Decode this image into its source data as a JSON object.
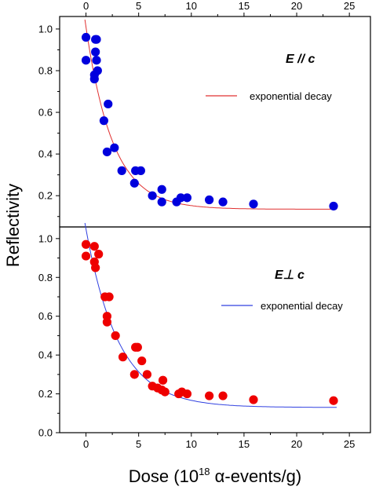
{
  "figure": {
    "ylabel": "Reflectivity",
    "xlabel_prefix": "Dose (10",
    "xlabel_exponent": "18",
    "xlabel_suffix": " α-events/g)"
  },
  "chart_data": [
    {
      "type": "scatter",
      "panel": "top",
      "label": "E // c",
      "xlim": [
        -2.5,
        27
      ],
      "ylim": [
        0.05,
        1.06
      ],
      "xticks": [
        0,
        5,
        10,
        15,
        20,
        25
      ],
      "xtick_labels": [
        "0",
        "5",
        "10",
        "15",
        "20",
        "25"
      ],
      "yticks": [
        0.2,
        0.4,
        0.6,
        0.8,
        1.0
      ],
      "ytick_labels": [
        "0.2",
        "0.4",
        "0.6",
        "0.8",
        "1.0"
      ],
      "x_axis_position": "top",
      "series": [
        {
          "kind": "points",
          "color": "#0000dd",
          "points": [
            {
              "x": 0.0,
              "y": 0.96
            },
            {
              "x": 0.0,
              "y": 0.85
            },
            {
              "x": 0.9,
              "y": 0.95
            },
            {
              "x": 1.0,
              "y": 0.95
            },
            {
              "x": 0.9,
              "y": 0.89
            },
            {
              "x": 1.0,
              "y": 0.85
            },
            {
              "x": 0.8,
              "y": 0.78
            },
            {
              "x": 0.8,
              "y": 0.76
            },
            {
              "x": 1.1,
              "y": 0.8
            },
            {
              "x": 1.7,
              "y": 0.56
            },
            {
              "x": 2.1,
              "y": 0.64
            },
            {
              "x": 2.0,
              "y": 0.41
            },
            {
              "x": 2.7,
              "y": 0.43
            },
            {
              "x": 3.4,
              "y": 0.32
            },
            {
              "x": 4.6,
              "y": 0.26
            },
            {
              "x": 4.7,
              "y": 0.32
            },
            {
              "x": 5.2,
              "y": 0.32
            },
            {
              "x": 6.3,
              "y": 0.2
            },
            {
              "x": 7.2,
              "y": 0.23
            },
            {
              "x": 7.2,
              "y": 0.17
            },
            {
              "x": 8.6,
              "y": 0.17
            },
            {
              "x": 9.0,
              "y": 0.19
            },
            {
              "x": 9.6,
              "y": 0.19
            },
            {
              "x": 11.7,
              "y": 0.18
            },
            {
              "x": 13.0,
              "y": 0.17
            },
            {
              "x": 15.9,
              "y": 0.16
            },
            {
              "x": 23.5,
              "y": 0.15
            }
          ]
        },
        {
          "kind": "line",
          "name": "exponential decay",
          "color": "#e03030",
          "model": {
            "y0": 0.135,
            "A": 0.875,
            "t": 2.55
          },
          "x_from": -0.1,
          "x_to": 23.8
        }
      ],
      "legend": {
        "text": "exponential decay",
        "position": "upper-right"
      }
    },
    {
      "type": "scatter",
      "panel": "bottom",
      "label": "E⊥ c",
      "xlim": [
        -2.5,
        27
      ],
      "ylim": [
        0.0,
        1.06
      ],
      "xticks": [
        0,
        5,
        10,
        15,
        20,
        25
      ],
      "xtick_labels": [
        "0",
        "5",
        "10",
        "15",
        "20",
        "25"
      ],
      "yticks": [
        0.0,
        0.2,
        0.4,
        0.6,
        0.8,
        1.0
      ],
      "ytick_labels": [
        "0.0",
        "0.2",
        "0.4",
        "0.6",
        "0.8",
        "1.0"
      ],
      "x_axis_position": "bottom",
      "series": [
        {
          "kind": "points",
          "color": "#ee0000",
          "points": [
            {
              "x": 0.0,
              "y": 0.97
            },
            {
              "x": 0.0,
              "y": 0.91
            },
            {
              "x": 0.8,
              "y": 0.96
            },
            {
              "x": 1.2,
              "y": 0.92
            },
            {
              "x": 0.8,
              "y": 0.88
            },
            {
              "x": 0.9,
              "y": 0.85
            },
            {
              "x": 1.8,
              "y": 0.7
            },
            {
              "x": 2.2,
              "y": 0.7
            },
            {
              "x": 2.0,
              "y": 0.6
            },
            {
              "x": 2.0,
              "y": 0.57
            },
            {
              "x": 2.8,
              "y": 0.5
            },
            {
              "x": 3.5,
              "y": 0.39
            },
            {
              "x": 4.7,
              "y": 0.44
            },
            {
              "x": 4.9,
              "y": 0.44
            },
            {
              "x": 5.3,
              "y": 0.37
            },
            {
              "x": 4.6,
              "y": 0.3
            },
            {
              "x": 5.8,
              "y": 0.3
            },
            {
              "x": 6.3,
              "y": 0.24
            },
            {
              "x": 6.8,
              "y": 0.23
            },
            {
              "x": 7.3,
              "y": 0.27
            },
            {
              "x": 7.2,
              "y": 0.22
            },
            {
              "x": 7.5,
              "y": 0.21
            },
            {
              "x": 8.8,
              "y": 0.2
            },
            {
              "x": 9.1,
              "y": 0.21
            },
            {
              "x": 9.6,
              "y": 0.2
            },
            {
              "x": 11.7,
              "y": 0.19
            },
            {
              "x": 13.0,
              "y": 0.19
            },
            {
              "x": 15.9,
              "y": 0.17
            },
            {
              "x": 23.5,
              "y": 0.165
            }
          ]
        },
        {
          "kind": "line",
          "name": "exponential decay",
          "color": "#3040e0",
          "model": {
            "y0": 0.13,
            "A": 0.92,
            "t": 3.1
          },
          "x_from": -0.1,
          "x_to": 23.8
        }
      ],
      "legend": {
        "text": "exponential decay",
        "position": "upper-right"
      }
    }
  ]
}
